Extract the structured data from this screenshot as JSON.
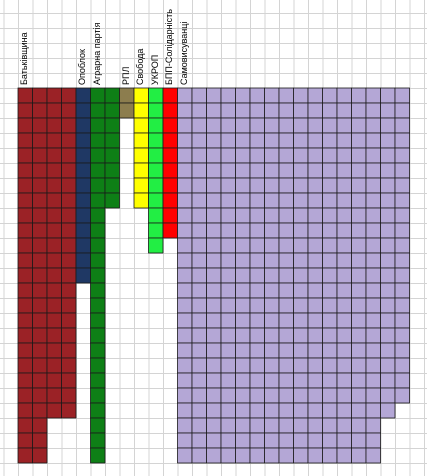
{
  "grid_color": "#d4d4d4",
  "cell_border": "#1a1a1a",
  "parties": [
    {
      "label": "Батьківщина",
      "color": "#9b2226",
      "cols": 4,
      "rows": [
        25,
        25,
        22,
        22
      ]
    },
    {
      "label": "Опоблок",
      "color": "#1f3864",
      "cols": 1,
      "rows": [
        13
      ]
    },
    {
      "label": "Аграрна партія",
      "color": "#0e7f16",
      "cols": 2,
      "rows": [
        25,
        8
      ]
    },
    {
      "label": "РПЛ",
      "color": "#8c7d4e",
      "cols": 1,
      "rows": [
        2
      ]
    },
    {
      "label": "Свобода",
      "color": "#ffff00",
      "cols": 1,
      "rows": [
        8
      ]
    },
    {
      "label": "УКРОП",
      "color": "#22ee44",
      "cols": 1,
      "rows": [
        11
      ]
    },
    {
      "label": "БПП-Солідарність",
      "color": "#ff0000",
      "cols": 1,
      "rows": [
        10
      ]
    },
    {
      "label": "Самовисуванці",
      "color": "#b4a7d6",
      "cols": 16,
      "rows": [
        25,
        25,
        25,
        25,
        25,
        25,
        25,
        25,
        25,
        25,
        25,
        25,
        25,
        25,
        22,
        21
      ]
    }
  ]
}
